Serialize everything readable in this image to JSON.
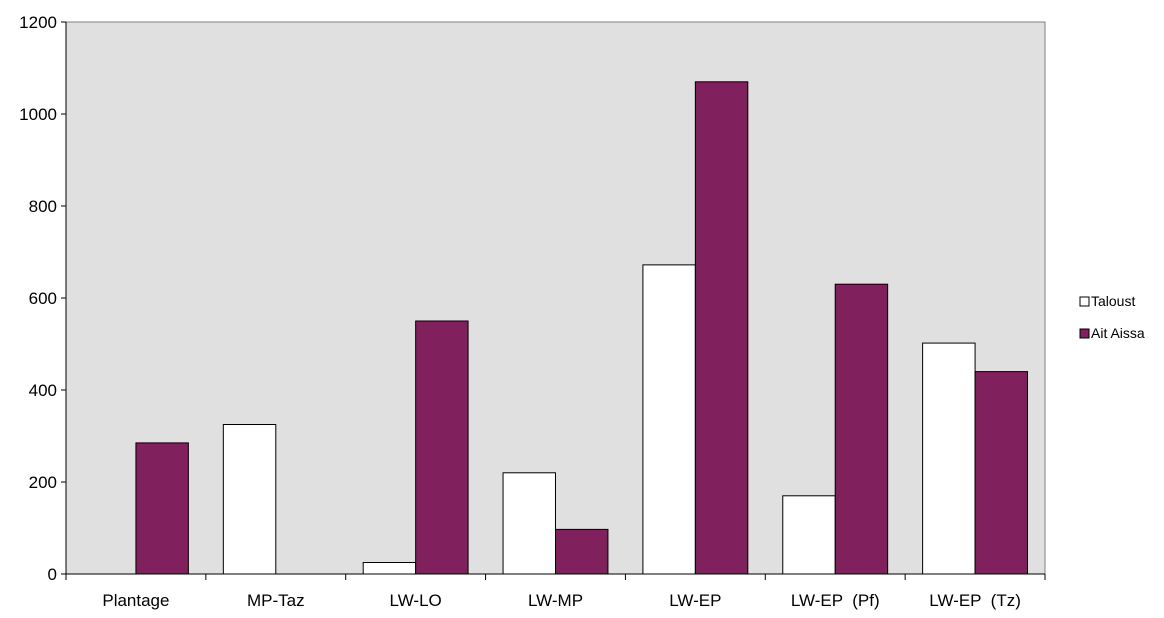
{
  "chart_data": {
    "type": "bar",
    "title": "",
    "xlabel": "",
    "ylabel": "",
    "categories": [
      "Plantage",
      "MP-Taz",
      "LW-LO",
      "LW-MP",
      "LW-EP",
      "LW-EP  (Pf)",
      "LW-EP  (Tz)"
    ],
    "series": [
      {
        "name": "Taloust",
        "color": "#ffffff",
        "values": [
          0,
          325,
          25,
          220,
          672,
          170,
          502
        ]
      },
      {
        "name": "Ait Aissa",
        "color": "#80205c",
        "values": [
          285,
          0,
          550,
          97,
          1070,
          630,
          440
        ]
      }
    ],
    "ylim": [
      0,
      1200
    ],
    "yticks": [
      0,
      200,
      400,
      600,
      800,
      1000,
      1200
    ],
    "plot_background": "#e0e0e0",
    "grid": false,
    "legend_position": "right"
  }
}
